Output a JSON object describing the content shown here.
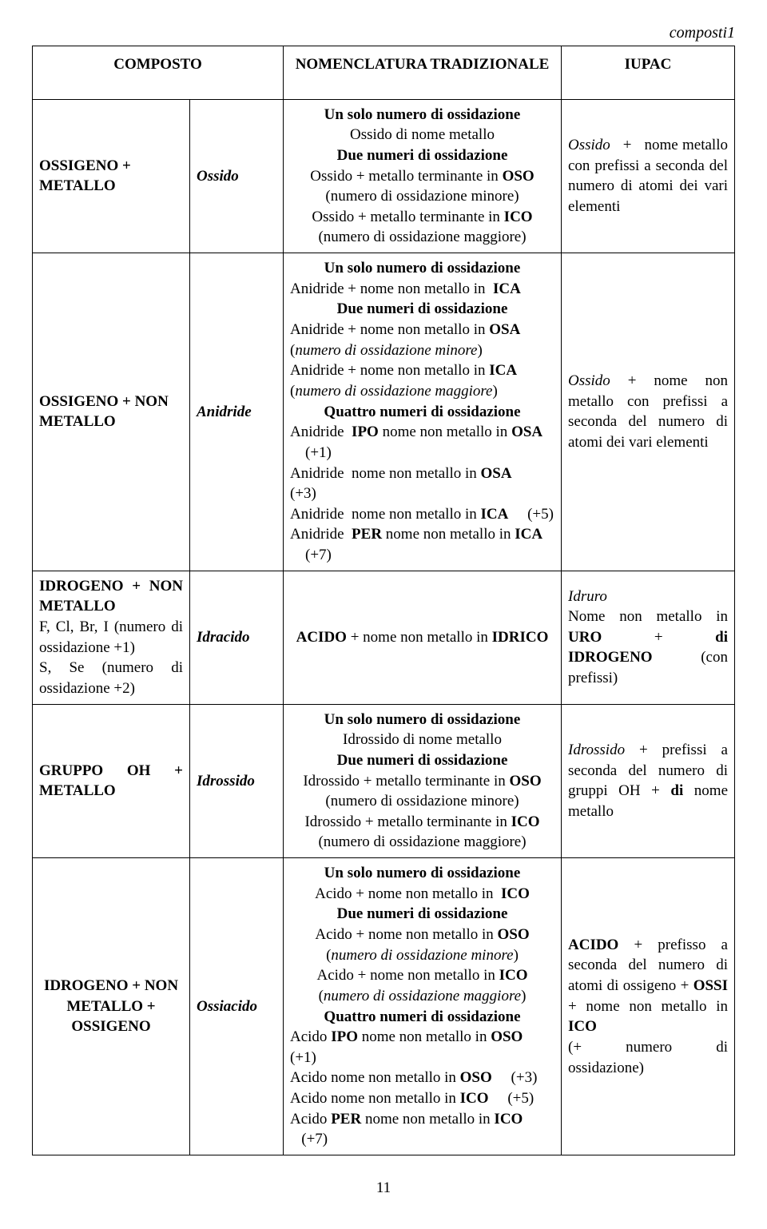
{
  "header_label": "composti1",
  "page_number": "11",
  "columns": {
    "composto": "COMPOSTO",
    "nomenclatura": "NOMENCLATURA TRADIZIONALE",
    "iupac": "IUPAC"
  },
  "rows": [
    {
      "composto_html": "<b>OSSIGENO + METALLO</b>",
      "type_html": "<b><i>Ossido</i></b>",
      "nomen_html": "<div class='center'><b>Un solo numero di ossidazione</b><br>Ossido di nome metallo<br><b>Due numeri di ossidazione</b><br>Ossido + metallo terminante in <b>OSO</b><br>(numero di ossidazione minore)<br>Ossido + metallo terminante in <b>ICO</b><br>(numero di ossidazione maggiore)</div>",
      "iupac_html": "<div class='justify'><i>Ossido</i> &nbsp; + &nbsp; nome metallo con prefissi a seconda del numero di atomi dei vari elementi</div>"
    },
    {
      "composto_html": "<b>OSSIGENO + NON METALLO</b>",
      "type_html": "<b><i>Anidride</i></b>",
      "nomen_html": "<div class='center'><b>Un solo numero di ossidazione</b></div>Anidride + nome non metallo in &nbsp;<b>ICA</b><div class='center'><b>Due numeri di ossidazione</b></div>Anidride + nome non metallo in <b>OSA</b> &nbsp;&nbsp;&nbsp; (<i>numero di ossidazione minore</i>)<br>Anidride + nome non metallo in <b>ICA</b> &nbsp;&nbsp;&nbsp;&nbsp; (<i>numero di ossidazione maggiore</i>)<div class='center'><b>Quattro numeri di ossidazione</b></div>Anidride &nbsp;<b>IPO</b> nome non metallo in <b>OSA</b> &nbsp;&nbsp;&nbsp; (+1)<br>Anidride &nbsp;nome non metallo in <b>OSA</b> &nbsp;&nbsp;&nbsp; (+3)<br>Anidride &nbsp;nome non metallo in <b>ICA</b> &nbsp;&nbsp;&nbsp; (+5)<br>Anidride &nbsp;<b>PER</b> nome non metallo in <b>ICA</b> &nbsp;&nbsp;&nbsp; (+7)",
      "iupac_html": "<div class='justify'><i>Ossido</i> + nome non metallo con prefissi a seconda del numero di atomi dei vari elementi</div>"
    },
    {
      "composto_html": "<div class='justify'><b>IDROGENO + NON METALLO</b><br>F, Cl, Br, I (numero di ossidazione +1)<br>S, Se (numero di ossidazione +2)</div>",
      "type_html": "<b><i>Idracido</i></b>",
      "nomen_html": "<div class='center'><b>ACIDO</b> + nome non metallo in <b>IDRICO</b></div>",
      "iupac_html": "<div class='justify'><i>Idruro</i><br>Nome non metallo in <b>URO</b> &nbsp; + &nbsp; <b>di IDROGENO</b> &nbsp;&nbsp; (con prefissi)</div>"
    },
    {
      "composto_html": "<div class='justify'><b>GRUPPO OH + METALLO</b></div>",
      "type_html": "<b><i>Idrossido</i></b>",
      "nomen_html": "<div class='center'><b>Un solo numero di ossidazione</b><br>Idrossido di nome metallo<br><b>Due numeri di ossidazione</b><br>Idrossido + metallo terminante in <b>OSO</b><br>(numero di ossidazione minore)<br>Idrossido + metallo terminante in <b>ICO</b><br>(numero di ossidazione maggiore)</div>",
      "iupac_html": "<div class='justify'><i>Idrossido</i> + prefissi a seconda del numero di gruppi OH + <b>di</b> nome metallo</div>"
    },
    {
      "composto_html": "<div class='center'><b>IDROGENO + NON METALLO + OSSIGENO</b></div>",
      "type_html": "<b><i>Ossiacido</i></b>",
      "nomen_html": "<div class='center'><b>Un solo numero di ossidazione</b><br>Acido + nome non metallo in &nbsp;<b>ICO</b><br><b>Due numeri di ossidazione</b><br>Acido + nome non metallo in <b>OSO</b><br>(<i>numero di ossidazione minore</i>)<br>Acido + nome non metallo in <b>ICO</b><br>(<i>numero di ossidazione maggiore</i>)<br><b>Quattro numeri di ossidazione</b></div>Acido <b>IPO</b> nome non metallo in <b>OSO</b> &nbsp;&nbsp;&nbsp; (+1)<br>Acido nome non metallo in <b>OSO</b> &nbsp;&nbsp;&nbsp; (+3)<br>Acido nome non metallo in <b>ICO</b> &nbsp;&nbsp;&nbsp; (+5)<br>Acido <b>PER</b> nome non metallo in <b>ICO</b> &nbsp;&nbsp;&nbsp;(+7)",
      "iupac_html": "<div class='justify'><b>ACIDO</b> + prefisso a seconda del numero di atomi di ossigeno + <b>OSSI</b> + nome non metallo in <b>ICO</b><br>(+ &nbsp; numero &nbsp; di ossidazione)</div>"
    }
  ]
}
